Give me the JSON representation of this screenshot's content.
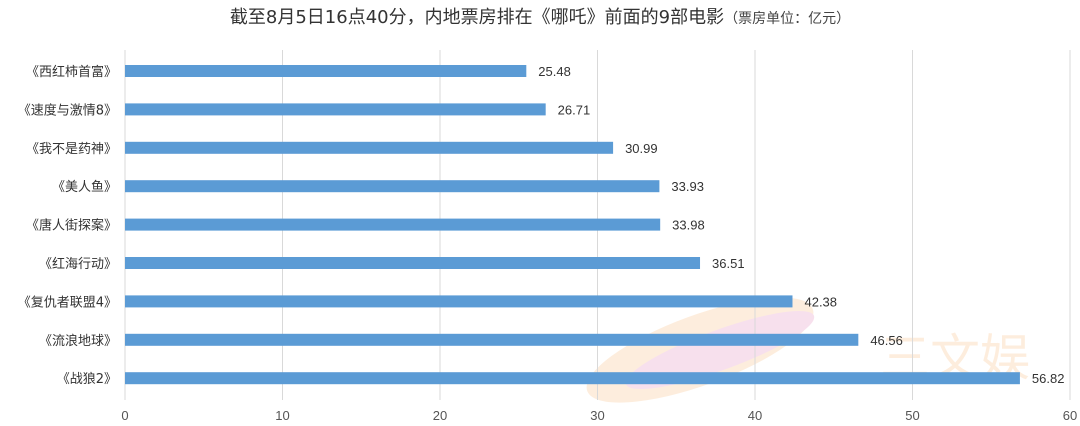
{
  "chart_data": {
    "type": "bar",
    "orientation": "horizontal",
    "title": "截至8月5日16点40分，内地票房排在《哪吒》前面的9部电影",
    "unit_note": "（票房单位：亿元）",
    "categories": [
      "《西红柿首富》",
      "《速度与激情8》",
      "《我不是药神》",
      "《美人鱼》",
      "《唐人街探案》",
      "《红海行动》",
      "《复仇者联盟4》",
      "《流浪地球》",
      "《战狼2》"
    ],
    "values": [
      25.48,
      26.71,
      30.99,
      33.93,
      33.98,
      36.51,
      42.38,
      46.56,
      56.82
    ],
    "value_labels": [
      "25.48",
      "26.71",
      "30.99",
      "33.93",
      "33.98",
      "36.51",
      "42.38",
      "46.56",
      "56.82"
    ],
    "xlim": [
      0,
      60
    ],
    "xticks": [
      "0",
      "10",
      "20",
      "30",
      "40",
      "50",
      "60"
    ],
    "grid": true,
    "legend": "none",
    "bar_color": "#5b9bd5"
  },
  "watermark": {
    "text": "三文娱"
  }
}
